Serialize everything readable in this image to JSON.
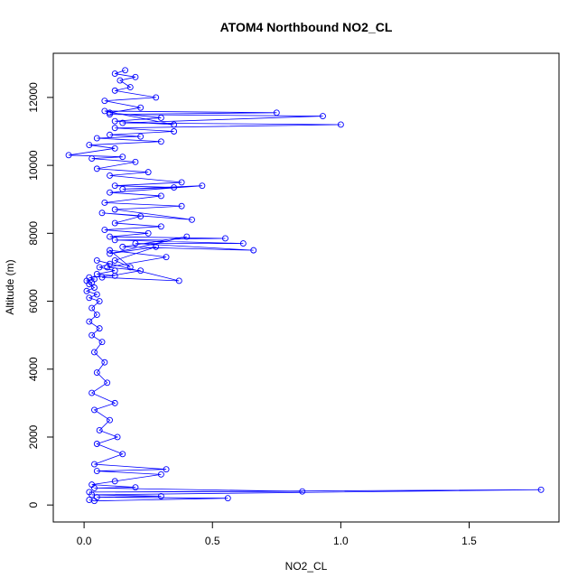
{
  "chart_data": {
    "type": "scatter",
    "title": "ATOM4 Northbound NO2_CL",
    "xlabel": "NO2_CL",
    "ylabel": "Altitude (m)",
    "xlim": [
      -0.12,
      1.85
    ],
    "ylim": [
      -500,
      13300
    ],
    "x_ticks": [
      0.0,
      0.5,
      1.0,
      1.5
    ],
    "x_tick_labels": [
      "0.0",
      "0.5",
      "1.0",
      "1.5"
    ],
    "y_ticks": [
      0,
      2000,
      4000,
      6000,
      8000,
      10000,
      12000
    ],
    "y_tick_labels": [
      "0",
      "2000",
      "4000",
      "6000",
      "8000",
      "10000",
      "12000"
    ],
    "grid": false,
    "legend": "none",
    "series": [
      {
        "style": "points connected by lines (type='o')",
        "color": "#0000ff",
        "x": [
          0.02,
          0.04,
          0.56,
          0.05,
          0.3,
          0.03,
          1.78,
          0.02,
          0.85,
          0.04,
          0.2,
          0.03,
          0.12,
          0.3,
          0.05,
          0.32,
          0.04,
          0.15,
          0.05,
          0.13,
          0.06,
          0.1,
          0.04,
          0.12,
          0.03,
          0.09,
          0.05,
          0.08,
          0.04,
          0.07,
          0.03,
          0.06,
          0.02,
          0.05,
          0.03,
          0.06,
          0.02,
          0.05,
          0.01,
          0.04,
          0.02,
          0.03,
          0.01,
          0.04,
          0.02,
          0.12,
          0.05,
          0.12,
          0.06,
          0.1,
          0.05,
          0.37,
          0.07,
          0.22,
          0.09,
          0.32,
          0.1,
          0.18,
          0.12,
          0.28,
          0.1,
          0.4,
          0.15,
          0.66,
          0.2,
          0.62,
          0.12,
          0.55,
          0.1,
          0.25,
          0.08,
          0.3,
          0.12,
          0.22,
          0.07,
          0.42,
          0.12,
          0.38,
          0.08,
          0.3,
          0.1,
          0.46,
          0.15,
          0.35,
          0.12,
          0.38,
          0.1,
          0.25,
          0.05,
          0.2,
          0.03,
          0.15,
          -0.06,
          0.12,
          0.02,
          0.3,
          0.05,
          0.22,
          0.1,
          0.35,
          0.12,
          1.0,
          0.15,
          0.93,
          0.1,
          0.75,
          0.08,
          0.35,
          0.12,
          0.3,
          0.1,
          0.22,
          0.08,
          0.28,
          0.12,
          0.18,
          0.14,
          0.2,
          0.12,
          0.16
        ],
        "y": [
          150,
          120,
          200,
          230,
          260,
          300,
          450,
          380,
          400,
          500,
          520,
          600,
          700,
          900,
          1000,
          1050,
          1200,
          1500,
          1800,
          2000,
          2200,
          2500,
          2800,
          3000,
          3300,
          3600,
          3900,
          4200,
          4500,
          4800,
          5000,
          5200,
          5400,
          5600,
          5800,
          6000,
          6100,
          6200,
          6300,
          6400,
          6500,
          6550,
          6600,
          6650,
          6700,
          6750,
          6800,
          6900,
          7000,
          7100,
          7200,
          6600,
          6700,
          6900,
          7000,
          7300,
          7500,
          7000,
          7200,
          7600,
          7400,
          7900,
          7600,
          7500,
          7700,
          7700,
          7800,
          7850,
          7900,
          8000,
          8100,
          8200,
          8300,
          8500,
          8600,
          8400,
          8700,
          8800,
          8900,
          9100,
          9200,
          9400,
          9300,
          9350,
          9400,
          9500,
          9700,
          9800,
          9900,
          10100,
          10200,
          10250,
          10300,
          10500,
          10600,
          10700,
          10800,
          10850,
          10900,
          11000,
          11100,
          11200,
          11250,
          11450,
          11500,
          11550,
          11600,
          11200,
          11300,
          11400,
          11550,
          11700,
          11900,
          12000,
          12200,
          12300,
          12500,
          12600,
          12700,
          12800
        ]
      }
    ]
  }
}
